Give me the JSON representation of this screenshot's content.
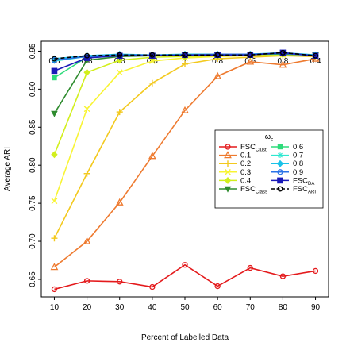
{
  "chart_data": {
    "type": "line",
    "xlabel": "Percent of Labelled Data",
    "ylabel": "Average ARI",
    "x": [
      10,
      20,
      30,
      40,
      50,
      60,
      70,
      80,
      90
    ],
    "xlim": [
      6,
      94
    ],
    "ylim": [
      0.627,
      0.963
    ],
    "xticks": [
      "10",
      "20",
      "30",
      "40",
      "50",
      "60",
      "70",
      "80",
      "90"
    ],
    "yticks": [
      "0.65",
      "0.70",
      "0.75",
      "0.80",
      "0.85",
      "0.90",
      "0.95"
    ],
    "grid": false,
    "top_labels": [
      "0.8",
      "0.8",
      "0.8",
      "0.6",
      "1",
      "0.8",
      "0.5",
      "0.8",
      "0.4"
    ],
    "legend": {
      "placement": "center-right",
      "title": "ωc",
      "title_main": "ω",
      "title_sub": "c"
    },
    "series": [
      {
        "name": "FSC_Clust",
        "label_main": "FSC",
        "label_sub": "Clust",
        "color": "#e41a1c",
        "marker": "circle",
        "dash": "solid",
        "values": [
          0.637,
          0.648,
          0.647,
          0.64,
          0.669,
          0.641,
          0.665,
          0.654,
          0.661
        ]
      },
      {
        "name": "0.1",
        "label_main": "0.1",
        "label_sub": "",
        "color": "#ee7a2f",
        "marker": "triangle-up",
        "dash": "solid",
        "values": [
          0.666,
          0.7,
          0.751,
          0.812,
          0.872,
          0.917,
          0.936,
          0.932,
          0.94
        ]
      },
      {
        "name": "0.2",
        "label_main": "0.2",
        "label_sub": "",
        "color": "#f3c91e",
        "marker": "plus",
        "dash": "solid",
        "values": [
          0.704,
          0.789,
          0.87,
          0.908,
          0.933,
          0.94,
          0.942,
          0.944,
          0.943
        ]
      },
      {
        "name": "0.3",
        "label_main": "0.3",
        "label_sub": "",
        "color": "#f8f434",
        "marker": "x",
        "dash": "solid",
        "values": [
          0.753,
          0.874,
          0.922,
          0.937,
          0.941,
          0.943,
          0.944,
          0.945,
          0.944
        ]
      },
      {
        "name": "0.4",
        "label_main": "0.4",
        "label_sub": "",
        "color": "#d2ef1d",
        "marker": "diamond",
        "dash": "solid",
        "values": [
          0.814,
          0.922,
          0.938,
          0.942,
          0.943,
          0.944,
          0.945,
          0.946,
          0.945
        ]
      },
      {
        "name": "FSC_Class",
        "label_main": "FSC",
        "label_sub": "Class",
        "color": "#2e8b2e",
        "marker": "triangle-down",
        "dash": "solid",
        "values": [
          0.868,
          0.938,
          0.943,
          0.944,
          0.945,
          0.945,
          0.946,
          0.946,
          0.945
        ]
      },
      {
        "name": "0.6",
        "label_main": "0.6",
        "label_sub": "",
        "color": "#2edb7b",
        "marker": "square",
        "dash": "solid",
        "values": [
          0.915,
          0.942,
          0.944,
          0.944,
          0.945,
          0.945,
          0.946,
          0.947,
          0.945
        ]
      },
      {
        "name": "0.7",
        "label_main": "0.7",
        "label_sub": "",
        "color": "#2ee8d0",
        "marker": "asterisk",
        "dash": "solid",
        "values": [
          0.937,
          0.943,
          0.944,
          0.944,
          0.945,
          0.946,
          0.946,
          0.947,
          0.945
        ]
      },
      {
        "name": "0.8",
        "label_main": "0.8",
        "label_sub": "",
        "color": "#19c2e8",
        "marker": "diamond",
        "dash": "solid",
        "values": [
          0.94,
          0.944,
          0.946,
          0.945,
          0.946,
          0.946,
          0.946,
          0.948,
          0.945
        ]
      },
      {
        "name": "0.9",
        "label_main": "0.9",
        "label_sub": "",
        "color": "#2a73e8",
        "marker": "circle",
        "dash": "solid",
        "values": [
          0.938,
          0.943,
          0.945,
          0.945,
          0.945,
          0.946,
          0.946,
          0.947,
          0.944
        ]
      },
      {
        "name": "FSC_DA",
        "label_main": "FSC",
        "label_sub": "DA",
        "color": "#1a1ab8",
        "marker": "boxx",
        "dash": "solid",
        "values": [
          0.924,
          0.941,
          0.944,
          0.944,
          0.945,
          0.945,
          0.945,
          0.948,
          0.944
        ]
      },
      {
        "name": "FSC_ARI",
        "label_main": "FSC",
        "label_sub": "ARI",
        "color": "#000000",
        "marker": "open-circle",
        "dash": "dashed",
        "values": [
          0.94,
          0.944,
          0.945,
          0.945,
          0.945,
          0.945,
          0.945,
          0.948,
          0.944
        ]
      }
    ]
  }
}
